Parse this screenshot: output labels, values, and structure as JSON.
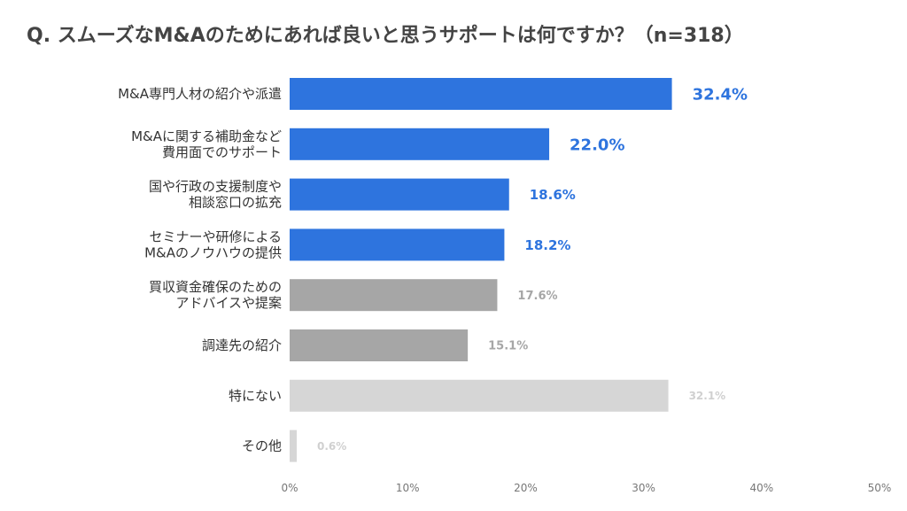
{
  "title": "Q. スムーズなM&Aのためにあれば良いと思うサポートは何ですか？（n=318）",
  "chart_data": {
    "type": "bar",
    "orientation": "horizontal",
    "title": "Q. スムーズなM&Aのためにあれば良いと思うサポートは何ですか？（n=318）",
    "categories": [
      [
        "M&A専門人材の紹介や派遣"
      ],
      [
        "M&Aに関する補助金など",
        "費用面でのサポート"
      ],
      [
        "国や行政の支援制度や",
        "相談窓口の拡充"
      ],
      [
        "セミナーや研修による",
        "M&Aのノウハウの提供"
      ],
      [
        "買収資金確保のための",
        "アドバイスや提案"
      ],
      [
        "調達先の紹介"
      ],
      [
        "特にない"
      ],
      [
        "その他"
      ]
    ],
    "values": [
      32.4,
      22.0,
      18.6,
      18.2,
      17.6,
      15.1,
      32.1,
      0.6
    ],
    "value_labels": [
      "32.4%",
      "22.0%",
      "18.6%",
      "18.2%",
      "17.6%",
      "15.1%",
      "32.1%",
      "0.6%"
    ],
    "bar_colors": [
      "#2e74de",
      "#2e74de",
      "#2e74de",
      "#2e74de",
      "#a6a6a6",
      "#a6a6a6",
      "#d6d6d6",
      "#d6d6d6"
    ],
    "label_colors": [
      "#2e74de",
      "#2e74de",
      "#2e74de",
      "#2e74de",
      "#a6a6a6",
      "#a6a6a6",
      "#d0d0d0",
      "#d0d0d0"
    ],
    "xlim": [
      0,
      50
    ],
    "xticks": [
      0,
      10,
      20,
      30,
      40,
      50
    ],
    "xtick_labels": [
      "0%",
      "10%",
      "20%",
      "30%",
      "40%",
      "50%"
    ],
    "grid": false
  }
}
